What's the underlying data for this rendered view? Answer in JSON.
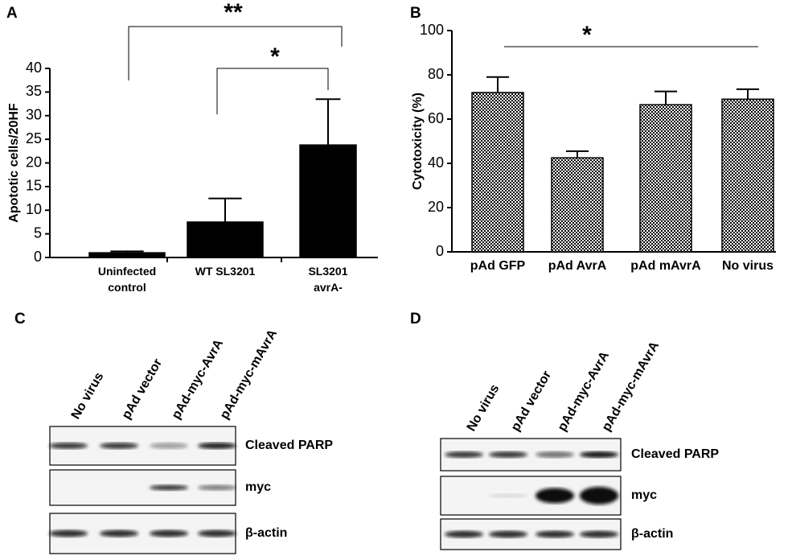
{
  "chart_data": [
    {
      "type": "bar",
      "panel": "A",
      "y_label": "Apototic cells/20HF",
      "categories": [
        "Uninfected\ncontrol",
        "WT SL3201",
        "SL3201\navrA-"
      ],
      "values": [
        1.0,
        7.5,
        23.8
      ],
      "errors": [
        0.3,
        5.0,
        9.7
      ],
      "color": "#000000",
      "ylim": [
        0,
        40
      ],
      "yticks": [
        0,
        5,
        10,
        15,
        20,
        25,
        30,
        35,
        40
      ],
      "annotations": [
        "**",
        "*"
      ]
    },
    {
      "type": "bar",
      "panel": "B",
      "y_label": "Cytotoxicity (%)",
      "categories": [
        "pAd  GFP",
        "pAd  AvrA",
        "pAd  mAvrA",
        "No virus"
      ],
      "values": [
        72,
        42.5,
        66.5,
        69
      ],
      "errors": [
        7,
        3,
        6,
        4.5
      ],
      "color": "#000000",
      "fill_pattern": "checker",
      "ylim": [
        0,
        100
      ],
      "yticks": [
        0,
        20,
        40,
        60,
        80,
        100
      ],
      "annotations": [
        "*"
      ]
    }
  ],
  "blots": [
    {
      "panel": "C",
      "lanes": [
        "No virus",
        "pAd vector",
        "pAd-myc-AvrA",
        "pAd-myc-mAvrA"
      ],
      "rows": [
        "Cleaved PARP",
        "myc",
        "β-actin"
      ]
    },
    {
      "panel": "D",
      "lanes": [
        "No virus",
        "pAd vector",
        "pAd-myc-AvrA",
        "pAd-myc-mAvrA"
      ],
      "rows": [
        "Cleaved PARP",
        "myc",
        "β-actin"
      ]
    }
  ]
}
